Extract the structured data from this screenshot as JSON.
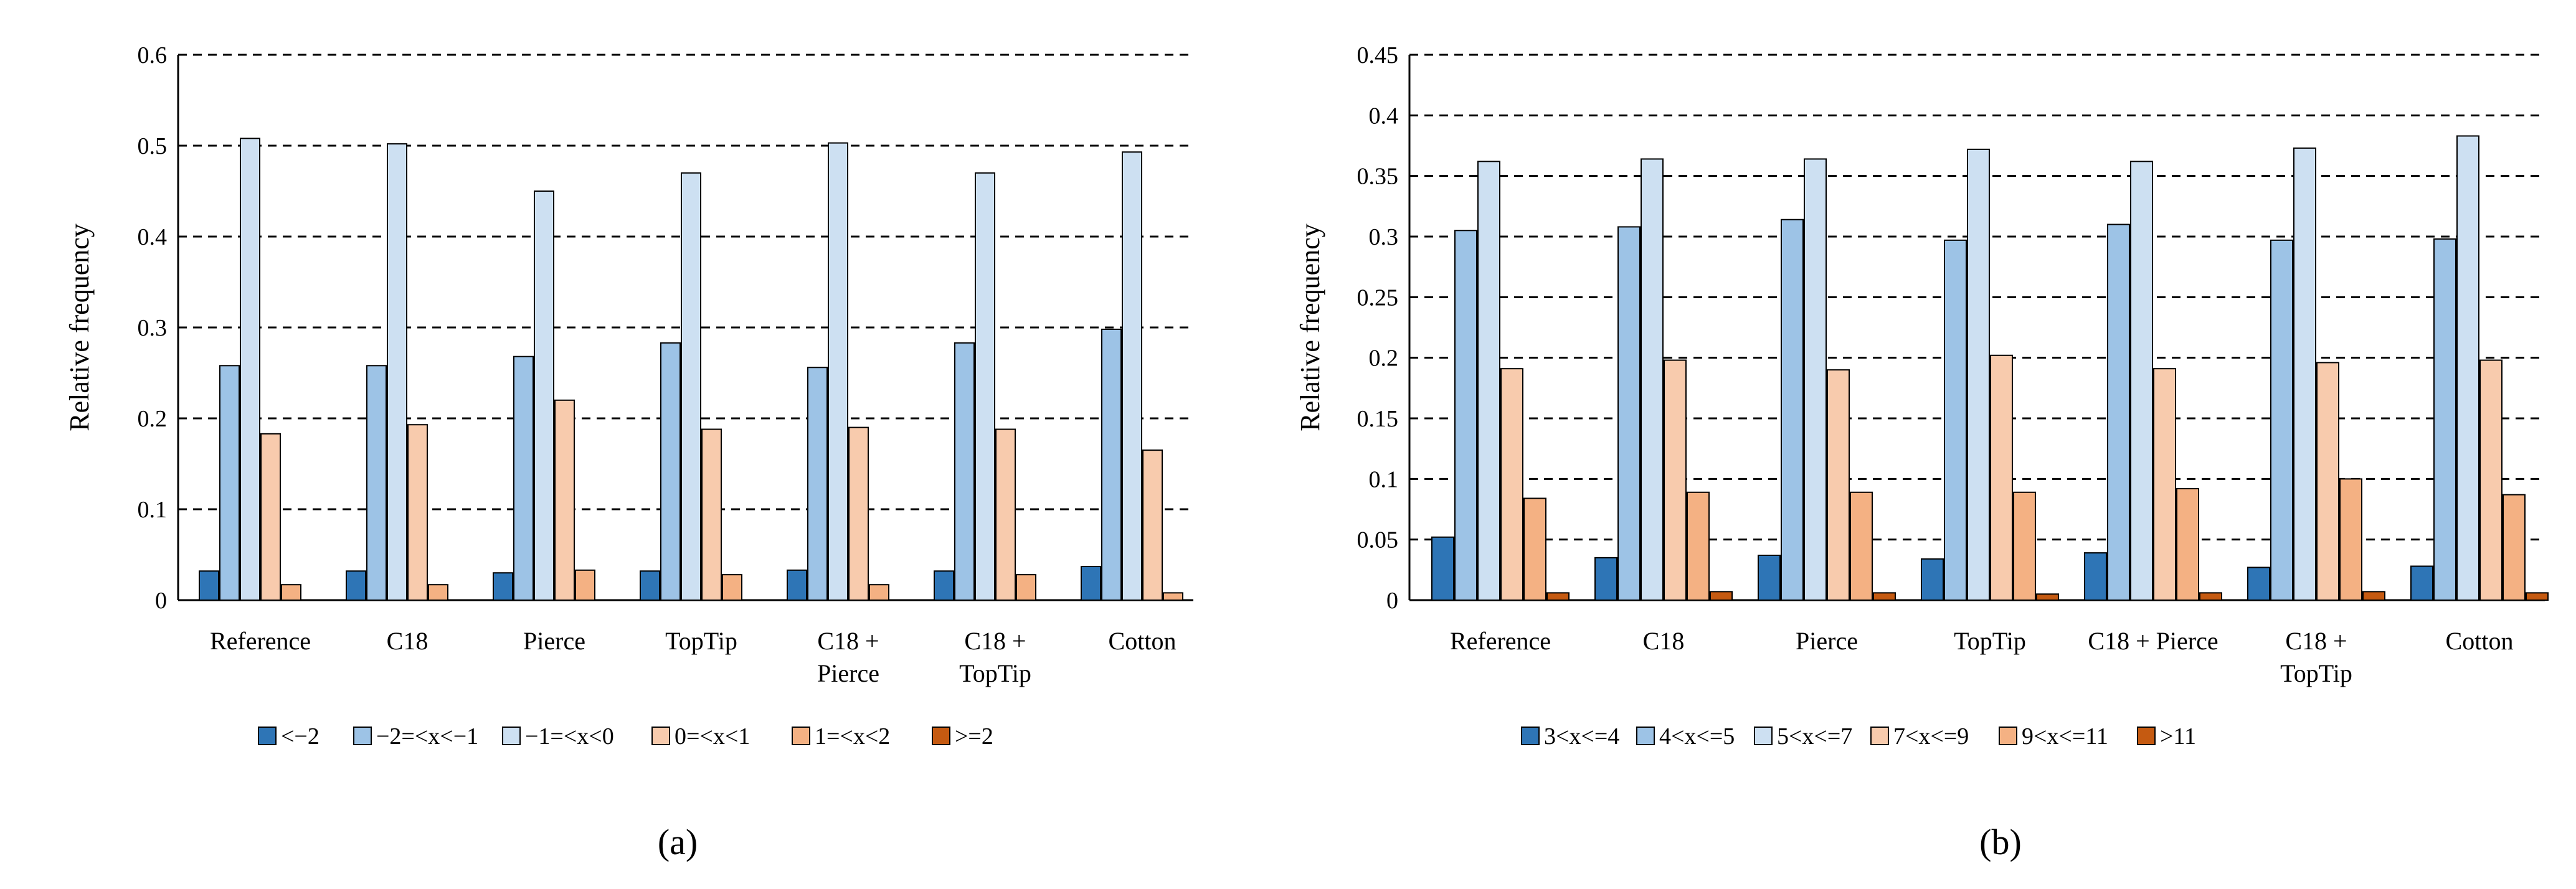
{
  "chart_data": [
    {
      "type": "bar",
      "panel_label": "(a)",
      "ylabel": "Relative frequency",
      "xlabel": "",
      "ylim": [
        0,
        0.6
      ],
      "yticks": [
        "0",
        "0.1",
        "0.2",
        "0.3",
        "0.4",
        "0.5",
        "0.6"
      ],
      "grid": true,
      "legend": "bottom",
      "categories": [
        [
          "Reference"
        ],
        [
          "C18"
        ],
        [
          "Pierce"
        ],
        [
          "TopTip"
        ],
        [
          "C18 +",
          "Pierce"
        ],
        [
          "C18 +",
          "TopTip"
        ],
        [
          "Cotton"
        ]
      ],
      "series": [
        {
          "name": "<−2",
          "color": "#2e75b6",
          "values": [
            0.032,
            0.032,
            0.03,
            0.032,
            0.033,
            0.032,
            0.037
          ]
        },
        {
          "name": "−2=<x<−1",
          "color": "#9dc3e6",
          "values": [
            0.258,
            0.258,
            0.268,
            0.283,
            0.256,
            0.283,
            0.298
          ]
        },
        {
          "name": "−1=<x<0",
          "color": "#cde0f2",
          "values": [
            0.508,
            0.502,
            0.45,
            0.47,
            0.503,
            0.47,
            0.493
          ]
        },
        {
          "name": "0=<x<1",
          "color": "#f8cbad",
          "values": [
            0.183,
            0.193,
            0.22,
            0.188,
            0.19,
            0.188,
            0.165
          ]
        },
        {
          "name": "1=<x<2",
          "color": "#f4b183",
          "values": [
            0.017,
            0.017,
            0.033,
            0.028,
            0.017,
            0.028,
            0.008
          ]
        },
        {
          "name": ">=2",
          "color": "#c55a11",
          "values": [
            0,
            0,
            0,
            0,
            0,
            0,
            0
          ]
        }
      ]
    },
    {
      "type": "bar",
      "panel_label": "(b)",
      "ylabel": "Relative frequency",
      "xlabel": "",
      "ylim": [
        0,
        0.45
      ],
      "yticks": [
        "0",
        "0.05",
        "0.1",
        "0.15",
        "0.2",
        "0.25",
        "0.3",
        "0.35",
        "0.4",
        "0.45"
      ],
      "grid": true,
      "legend": "bottom",
      "categories": [
        [
          "Reference"
        ],
        [
          "C18"
        ],
        [
          "Pierce"
        ],
        [
          "TopTip"
        ],
        [
          "C18 + Pierce"
        ],
        [
          "C18 +",
          "TopTip"
        ],
        [
          "Cotton"
        ]
      ],
      "series": [
        {
          "name": "3<x<=4",
          "color": "#2e75b6",
          "values": [
            0.052,
            0.035,
            0.037,
            0.034,
            0.039,
            0.027,
            0.028
          ]
        },
        {
          "name": "4<x<=5",
          "color": "#9dc3e6",
          "values": [
            0.305,
            0.308,
            0.314,
            0.297,
            0.31,
            0.297,
            0.298
          ]
        },
        {
          "name": "5<x<=7",
          "color": "#cde0f2",
          "values": [
            0.362,
            0.364,
            0.364,
            0.372,
            0.362,
            0.373,
            0.383
          ]
        },
        {
          "name": "7<x<=9",
          "color": "#f8cbad",
          "values": [
            0.191,
            0.198,
            0.19,
            0.202,
            0.191,
            0.196,
            0.198
          ]
        },
        {
          "name": "9<x<=11",
          "color": "#f4b183",
          "values": [
            0.084,
            0.089,
            0.089,
            0.089,
            0.092,
            0.1,
            0.087
          ]
        },
        {
          "name": ">11",
          "color": "#c55a11",
          "values": [
            0.006,
            0.007,
            0.006,
            0.005,
            0.006,
            0.007,
            0.006
          ]
        }
      ]
    }
  ]
}
